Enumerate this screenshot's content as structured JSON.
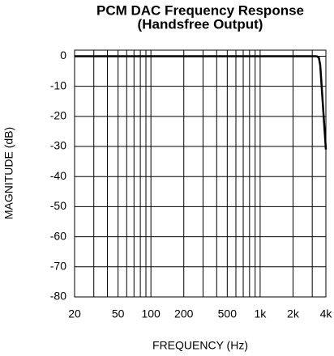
{
  "chart_data": {
    "type": "line",
    "title": "PCM DAC Frequency Response",
    "subtitle": "(Handsfree Output)",
    "xlabel": "FREQUENCY (Hz)",
    "ylabel": "MAGNITUDE (dB)",
    "xscale": "log",
    "xlim": [
      20,
      4000
    ],
    "ylim": [
      -80,
      2
    ],
    "xticks": [
      20,
      50,
      100,
      200,
      500,
      {
        "value": 1000,
        "label": "1k"
      },
      {
        "value": 2000,
        "label": "2k"
      },
      {
        "value": 4000,
        "label": "4k"
      }
    ],
    "xminor_ticks": [
      30,
      40,
      60,
      70,
      80,
      90,
      300,
      400,
      600,
      700,
      800,
      900,
      3000
    ],
    "yticks": [
      0,
      -10,
      -20,
      -30,
      -40,
      -50,
      -60,
      -70,
      -80
    ],
    "grid": true,
    "series": [
      {
        "color": "#000000",
        "x": [
          20,
          1000,
          3300,
          3450,
          3550,
          4000
        ],
        "values": [
          0,
          0,
          0,
          -0.5,
          -3,
          -31
        ]
      }
    ]
  }
}
